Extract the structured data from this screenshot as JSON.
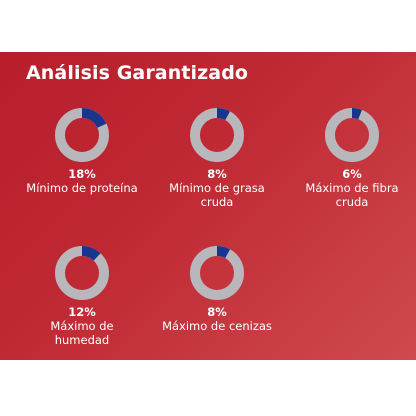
{
  "title": "Análisis Garantizado",
  "colors": {
    "background": "#c02a34",
    "ring_track": "#b8b8bc",
    "ring_fill": "#1a3590",
    "text": "#ffffff"
  },
  "chart_data": {
    "type": "donut",
    "title": "Análisis Garantizado",
    "items": [
      {
        "value_text": "18%",
        "value": 18,
        "label_lines": [
          "Mínimo de proteína"
        ]
      },
      {
        "value_text": "8%",
        "value": 8,
        "label_lines": [
          "Mínimo de grasa",
          "cruda"
        ]
      },
      {
        "value_text": "6%",
        "value": 6,
        "label_lines": [
          "Máximo de fibra",
          "cruda"
        ]
      },
      {
        "value_text": "12%",
        "value": 12,
        "label_lines": [
          "Máximo de",
          "humedad"
        ]
      },
      {
        "value_text": "8%",
        "value": 8,
        "label_lines": [
          "Máximo de cenizas"
        ]
      }
    ]
  }
}
